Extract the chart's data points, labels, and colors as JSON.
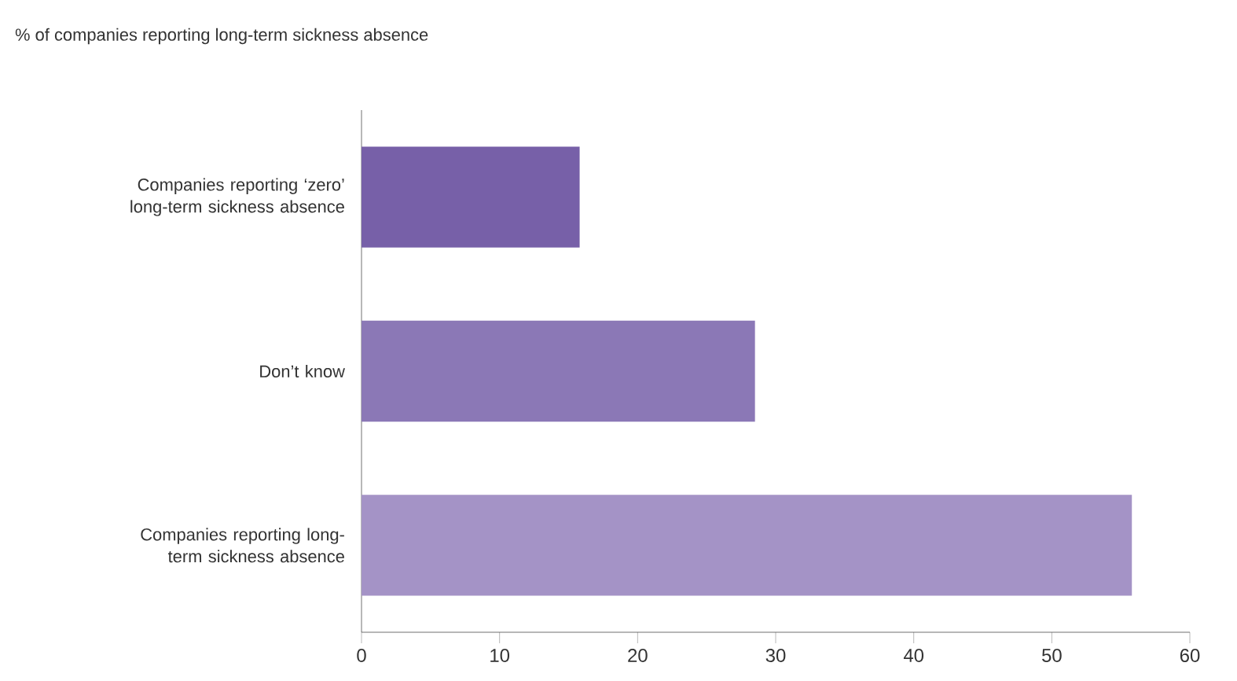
{
  "chart_data": {
    "type": "bar",
    "orientation": "horizontal",
    "title": "% of companies reporting long-term sickness absence",
    "categories": [
      "Companies reporting ‘zero’ long-term sickness absence",
      "Don’t know",
      "Companies reporting long-term sickness absence"
    ],
    "values": [
      15.8,
      28.5,
      55.8
    ],
    "colors": [
      "#7760a8",
      "#8b78b6",
      "#a493c6"
    ],
    "xlim": [
      0,
      60
    ],
    "xticks": [
      0,
      10,
      20,
      30,
      40,
      50,
      60
    ],
    "grid": false
  }
}
